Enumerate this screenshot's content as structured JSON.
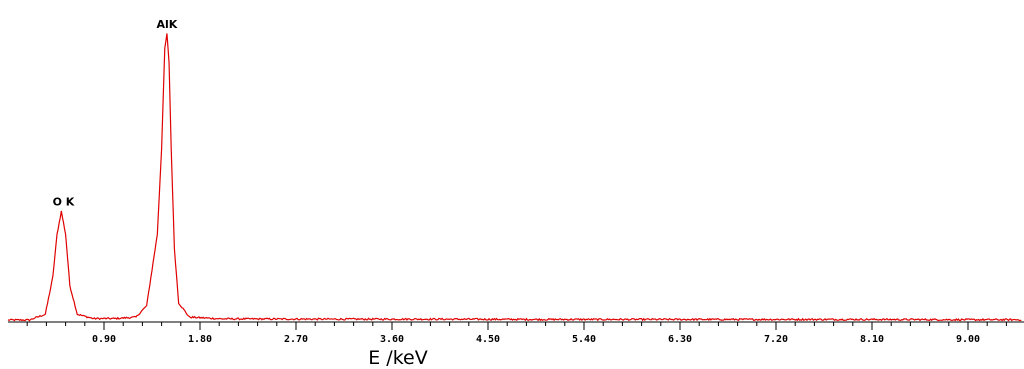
{
  "chart_data": {
    "type": "line",
    "title": "",
    "xlabel": "E /keV",
    "ylabel": "",
    "xlim": [
      0.0,
      9.5
    ],
    "ylim": [
      0,
      1.0
    ],
    "x_ticks": [
      "0.90",
      "1.80",
      "2.70",
      "3.60",
      "4.50",
      "5.40",
      "6.30",
      "7.20",
      "8.10",
      "9.00"
    ],
    "grid": false,
    "legend": "none",
    "line_color": "#e00000",
    "series": [
      {
        "values_description_free": true,
        "x": [
          0.0,
          0.2,
          0.35,
          0.42,
          0.46,
          0.5,
          0.54,
          0.58,
          0.65,
          0.8,
          1.0,
          1.2,
          1.3,
          1.4,
          1.44,
          1.47,
          1.49,
          1.51,
          1.53,
          1.56,
          1.6,
          1.7,
          2.0,
          3.0,
          4.0,
          5.0,
          6.0,
          7.0,
          8.0,
          9.0,
          9.5
        ],
        "y": [
          0.0,
          0.0,
          0.02,
          0.15,
          0.3,
          0.38,
          0.3,
          0.12,
          0.02,
          0.005,
          0.005,
          0.01,
          0.05,
          0.3,
          0.6,
          0.95,
          1.0,
          0.9,
          0.6,
          0.25,
          0.06,
          0.01,
          0.004,
          0.003,
          0.003,
          0.002,
          0.002,
          0.002,
          0.002,
          0.001,
          0.001
        ]
      }
    ],
    "annotations": [
      {
        "text": "O K",
        "x": 0.52,
        "y": 0.38
      },
      {
        "text": "AlK",
        "x": 1.49,
        "y": 1.0
      }
    ]
  }
}
